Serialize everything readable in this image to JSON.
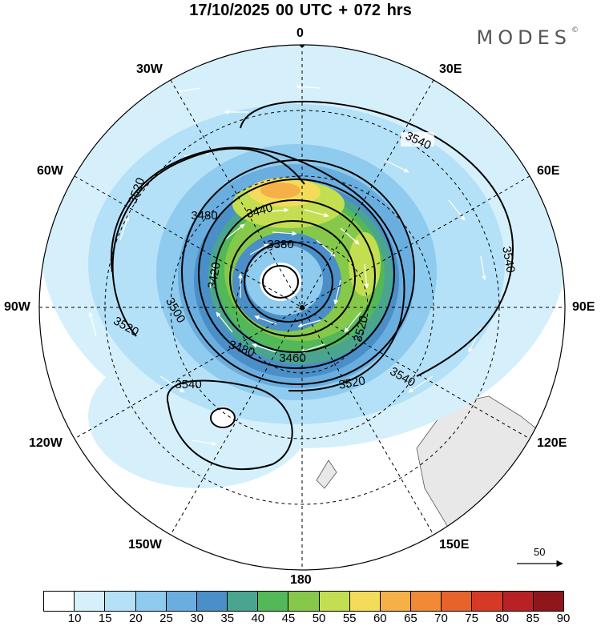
{
  "title": "17/10/2025  00 UTC  + 072 hrs",
  "logo": "MODES",
  "logo_mark": "©",
  "lon_labels": {
    "l0": "0",
    "l30e": "30E",
    "l60e": "60E",
    "l90e": "90E",
    "l120e": "120E",
    "l150e": "150E",
    "l180": "180",
    "l150w": "150W",
    "l120w": "120W",
    "l90w": "90W",
    "l60w": "60W",
    "l30w": "30W"
  },
  "contour_labels": {
    "c1": "3540",
    "c2": "3540",
    "c3": "3540",
    "c4": "3540",
    "c5": "3520",
    "c6": "3520",
    "c7": "3520",
    "c8": "3500",
    "c9": "3480",
    "c10": "3480",
    "c11": "3440",
    "c12": "3420",
    "c13": "3380",
    "c14": "3460",
    "c15": "3520"
  },
  "vector_scale": "50",
  "colorbar": {
    "ticks": [
      "10",
      "15",
      "20",
      "25",
      "30",
      "35",
      "40",
      "45",
      "50",
      "55",
      "60",
      "65",
      "70",
      "75",
      "80",
      "85",
      "90"
    ],
    "colors": [
      "#ffffff",
      "#d6f0fb",
      "#b4e1f7",
      "#8fcbee",
      "#6aaee0",
      "#4a8fc8",
      "#4aa58e",
      "#53b858",
      "#86c94a",
      "#c4de52",
      "#f3dc5a",
      "#f6b048",
      "#f08a36",
      "#e8632c",
      "#d63a26",
      "#b82226",
      "#8f171c"
    ]
  },
  "colors": {
    "land": "#e8e8e8",
    "coast": "#555555"
  }
}
